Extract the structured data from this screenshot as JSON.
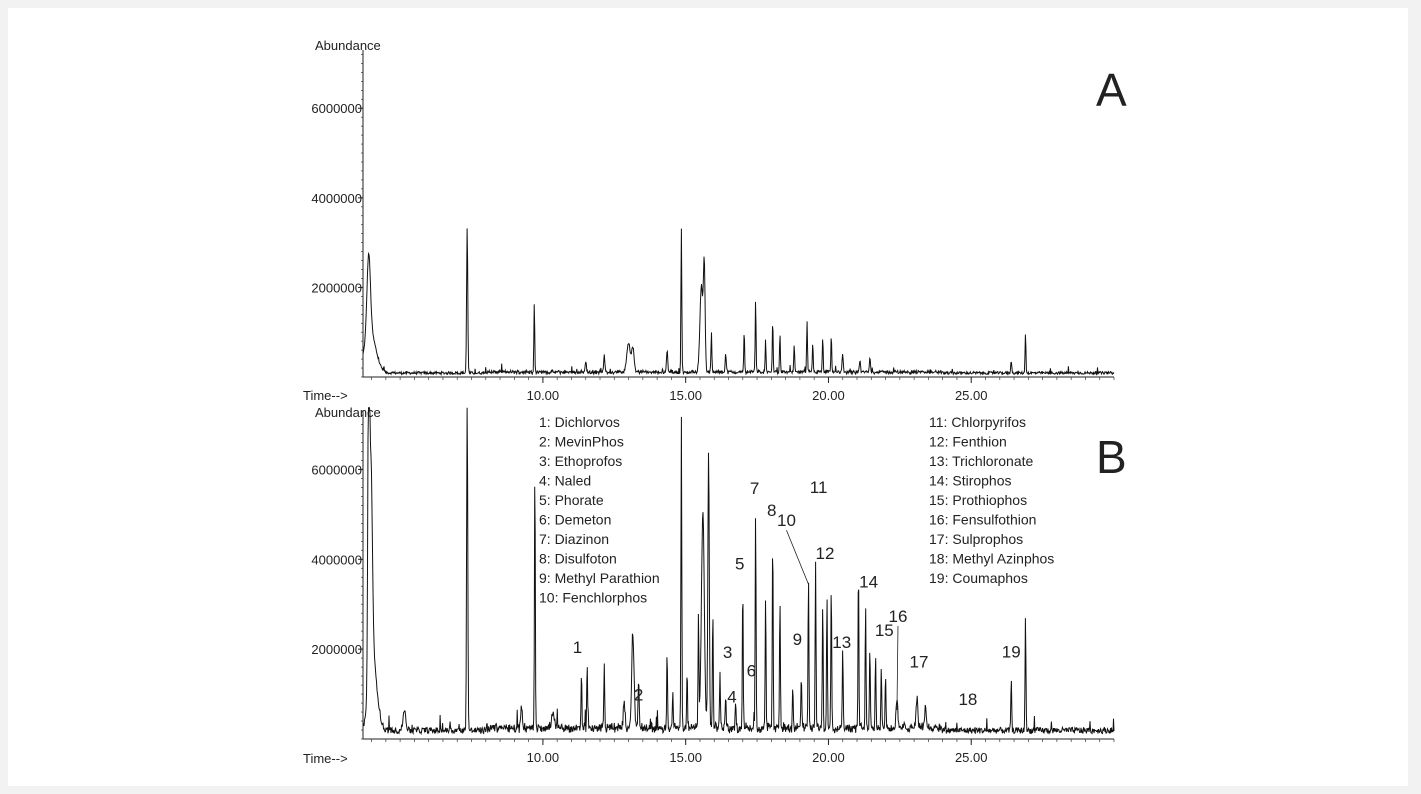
{
  "chart_data": [
    {
      "type": "line",
      "panel_label": "A",
      "ylabel": "Abundance",
      "xlabel": "Time-->",
      "xlim": [
        3.7,
        30.0
      ],
      "ylim": [
        0,
        7300000
      ],
      "x_ticks": [
        "10.00",
        "15.00",
        "20.00",
        "25.00"
      ],
      "y_ticks": [
        "2000000",
        "4000000",
        "6000000"
      ],
      "peaks": [
        {
          "t": 3.9,
          "h": 1800000,
          "w": 0.06
        },
        {
          "t": 3.95,
          "h": 900000,
          "w": 0.2
        },
        {
          "t": 7.35,
          "h": 3250000,
          "w": 0.02
        },
        {
          "t": 9.7,
          "h": 1550000,
          "w": 0.015
        },
        {
          "t": 11.5,
          "h": 250000,
          "w": 0.02
        },
        {
          "t": 12.15,
          "h": 380000,
          "w": 0.02
        },
        {
          "t": 13.0,
          "h": 650000,
          "w": 0.06
        },
        {
          "t": 13.15,
          "h": 550000,
          "w": 0.04
        },
        {
          "t": 14.35,
          "h": 500000,
          "w": 0.02
        },
        {
          "t": 14.85,
          "h": 3200000,
          "w": 0.015
        },
        {
          "t": 15.55,
          "h": 1900000,
          "w": 0.05
        },
        {
          "t": 15.65,
          "h": 2300000,
          "w": 0.03
        },
        {
          "t": 15.9,
          "h": 900000,
          "w": 0.015
        },
        {
          "t": 16.4,
          "h": 400000,
          "w": 0.02
        },
        {
          "t": 17.05,
          "h": 900000,
          "w": 0.015
        },
        {
          "t": 17.45,
          "h": 1600000,
          "w": 0.015
        },
        {
          "t": 17.8,
          "h": 700000,
          "w": 0.015
        },
        {
          "t": 18.05,
          "h": 1150000,
          "w": 0.015
        },
        {
          "t": 18.3,
          "h": 850000,
          "w": 0.015
        },
        {
          "t": 18.8,
          "h": 650000,
          "w": 0.015
        },
        {
          "t": 19.25,
          "h": 1100000,
          "w": 0.015
        },
        {
          "t": 19.45,
          "h": 650000,
          "w": 0.015
        },
        {
          "t": 19.8,
          "h": 750000,
          "w": 0.015
        },
        {
          "t": 20.1,
          "h": 800000,
          "w": 0.015
        },
        {
          "t": 20.5,
          "h": 400000,
          "w": 0.02
        },
        {
          "t": 21.1,
          "h": 250000,
          "w": 0.02
        },
        {
          "t": 21.45,
          "h": 300000,
          "w": 0.02
        },
        {
          "t": 26.4,
          "h": 250000,
          "w": 0.02
        },
        {
          "t": 26.9,
          "h": 900000,
          "w": 0.015
        }
      ]
    },
    {
      "type": "line",
      "panel_label": "B",
      "ylabel": "Abundance",
      "xlabel": "Time-->",
      "xlim": [
        3.7,
        30.0
      ],
      "ylim": [
        0,
        7300000
      ],
      "x_ticks": [
        "10.00",
        "15.00",
        "20.00",
        "25.00"
      ],
      "y_ticks": [
        "2000000",
        "4000000",
        "6000000"
      ],
      "peaks": [
        {
          "t": 3.9,
          "h": 7300000,
          "w": 0.03
        },
        {
          "t": 3.98,
          "h": 4500000,
          "w": 0.05
        },
        {
          "t": 4.05,
          "h": 1500000,
          "w": 0.15
        },
        {
          "t": 5.15,
          "h": 450000,
          "w": 0.05
        },
        {
          "t": 7.35,
          "h": 7350000,
          "w": 0.02
        },
        {
          "t": 9.25,
          "h": 400000,
          "w": 0.03
        },
        {
          "t": 9.72,
          "h": 5800000,
          "w": 0.015
        },
        {
          "t": 10.35,
          "h": 300000,
          "w": 0.05
        },
        {
          "t": 11.35,
          "h": 1250000,
          "w": 0.015
        },
        {
          "t": 11.55,
          "h": 1400000,
          "w": 0.015
        },
        {
          "t": 12.15,
          "h": 1500000,
          "w": 0.015
        },
        {
          "t": 12.85,
          "h": 600000,
          "w": 0.03
        },
        {
          "t": 13.15,
          "h": 2100000,
          "w": 0.04
        },
        {
          "t": 13.35,
          "h": 1000000,
          "w": 0.02
        },
        {
          "t": 14.35,
          "h": 1600000,
          "w": 0.015
        },
        {
          "t": 14.55,
          "h": 800000,
          "w": 0.015
        },
        {
          "t": 14.85,
          "h": 6900000,
          "w": 0.015
        },
        {
          "t": 15.05,
          "h": 1300000,
          "w": 0.015
        },
        {
          "t": 15.45,
          "h": 2500000,
          "w": 0.015
        },
        {
          "t": 15.6,
          "h": 4800000,
          "w": 0.05
        },
        {
          "t": 15.8,
          "h": 6100000,
          "w": 0.025
        },
        {
          "t": 15.95,
          "h": 2600000,
          "w": 0.015
        },
        {
          "t": 16.2,
          "h": 1300000,
          "w": 0.015
        },
        {
          "t": 16.4,
          "h": 800000,
          "w": 0.015
        },
        {
          "t": 16.75,
          "h": 600000,
          "w": 0.015
        },
        {
          "t": 17.0,
          "h": 3100000,
          "w": 0.015
        },
        {
          "t": 17.45,
          "h": 4900000,
          "w": 0.015
        },
        {
          "t": 17.8,
          "h": 2900000,
          "w": 0.015
        },
        {
          "t": 18.05,
          "h": 4300000,
          "w": 0.015
        },
        {
          "t": 18.3,
          "h": 2900000,
          "w": 0.015
        },
        {
          "t": 18.75,
          "h": 1000000,
          "w": 0.015
        },
        {
          "t": 19.05,
          "h": 1200000,
          "w": 0.015
        },
        {
          "t": 19.3,
          "h": 3400000,
          "w": 0.015
        },
        {
          "t": 19.55,
          "h": 3700000,
          "w": 0.015
        },
        {
          "t": 19.8,
          "h": 2800000,
          "w": 0.015
        },
        {
          "t": 19.95,
          "h": 3000000,
          "w": 0.015
        },
        {
          "t": 20.1,
          "h": 3200000,
          "w": 0.015
        },
        {
          "t": 20.5,
          "h": 1800000,
          "w": 0.015
        },
        {
          "t": 21.05,
          "h": 3550000,
          "w": 0.015
        },
        {
          "t": 21.3,
          "h": 2700000,
          "w": 0.015
        },
        {
          "t": 21.45,
          "h": 1900000,
          "w": 0.015
        },
        {
          "t": 21.65,
          "h": 1700000,
          "w": 0.015
        },
        {
          "t": 21.85,
          "h": 1400000,
          "w": 0.015
        },
        {
          "t": 22.0,
          "h": 1200000,
          "w": 0.015
        },
        {
          "t": 22.4,
          "h": 600000,
          "w": 0.03
        },
        {
          "t": 23.1,
          "h": 700000,
          "w": 0.03
        },
        {
          "t": 23.4,
          "h": 500000,
          "w": 0.03
        },
        {
          "t": 26.4,
          "h": 1150000,
          "w": 0.015
        },
        {
          "t": 26.9,
          "h": 2600000,
          "w": 0.015
        }
      ],
      "annotations": [
        {
          "label": "1",
          "t": 11.35,
          "h": 1250000
        },
        {
          "label": "2",
          "t": 13.7,
          "h": 300000
        },
        {
          "label": "3",
          "t": 16.4,
          "h": 800000
        },
        {
          "label": "4",
          "t": 16.55,
          "h": 150000
        },
        {
          "label": "5",
          "t": 17.0,
          "h": 3100000
        },
        {
          "label": "6",
          "t": 16.95,
          "h": 500000
        },
        {
          "label": "7",
          "t": 17.45,
          "h": 4900000
        },
        {
          "label": "8",
          "t": 18.05,
          "h": 4300000
        },
        {
          "label": "9",
          "t": 19.05,
          "h": 1200000
        },
        {
          "label": "10",
          "t": 19.3,
          "h": 3400000
        },
        {
          "label": "11",
          "t": 19.55,
          "h": 3700000
        },
        {
          "label": "12",
          "t": 19.95,
          "h": 3000000
        },
        {
          "label": "13",
          "t": 20.5,
          "h": 1800000
        },
        {
          "label": "14",
          "t": 21.3,
          "h": 2700000
        },
        {
          "label": "15",
          "t": 21.85,
          "h": 1400000
        },
        {
          "label": "16",
          "t": 22.4,
          "h": 600000
        },
        {
          "label": "17",
          "t": 23.1,
          "h": 700000
        },
        {
          "label": "18",
          "t": 25.2,
          "h": 200000
        },
        {
          "label": "19",
          "t": 26.4,
          "h": 1150000
        }
      ],
      "legend": [
        "1: Dichlorvos",
        "2: MevinPhos",
        "3: Ethoprofos",
        "4: Naled",
        "5: Phorate",
        "6: Demeton",
        "7: Diazinon",
        "8: Disulfoton",
        "9: Methyl Parathion",
        "10: Fenchlorphos",
        "11: Chlorpyrifos",
        "12: Fenthion",
        "13: Trichloronate",
        "14: Stirophos",
        "15: Prothiophos",
        "16: Fensulfothion",
        "17: Sulprophos",
        "18: Methyl Azinphos",
        "19: Coumaphos"
      ]
    }
  ]
}
